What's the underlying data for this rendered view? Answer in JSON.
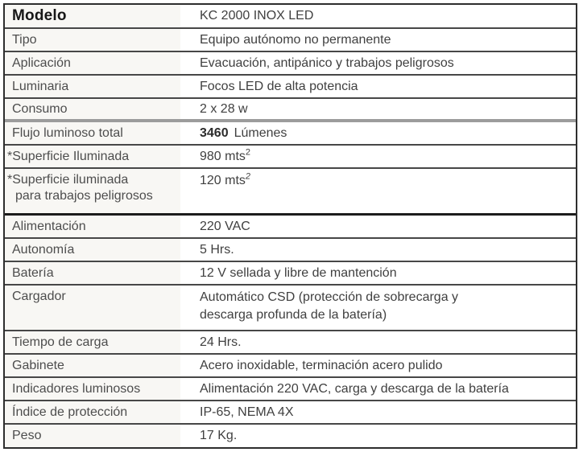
{
  "theme": {
    "outer-border": "#2e2e2e",
    "row-line": "#474747",
    "group-line-gray": "#9c9c9c",
    "group-line-dark": "#1c1c1c",
    "label-bg": "#f8f7f4",
    "label-text": "#4d4d4d",
    "value-text": "#404040",
    "header-text": "#171717"
  },
  "table": {
    "rows": [
      {
        "label": "Modelo",
        "value": "KC 2000 INOX LED"
      },
      {
        "label": "Tipo",
        "value": "Equipo autónomo no permanente"
      },
      {
        "label": "Aplicación",
        "value": "Evacuación, antipánico y trabajos peligrosos"
      },
      {
        "label": "Luminaria",
        "value": "Focos LED de alta potencia"
      },
      {
        "label": "Consumo",
        "value": "2 x 28 w"
      },
      {
        "label": "Flujo luminoso total",
        "value_number": "3460",
        "value_unit": "Lúmenes"
      },
      {
        "label": "*Superficie Iluminada",
        "value": "980 mts",
        "value_sup": "2"
      },
      {
        "label": "*Superficie iluminada",
        "label_line2": "para trabajos peligrosos",
        "value": "120 mts",
        "value_sup": "2"
      },
      {
        "label": "Alimentación",
        "value": "220 VAC"
      },
      {
        "label": "Autonomía",
        "value": "5 Hrs."
      },
      {
        "label": "Batería",
        "value": "12 V sellada y libre de mantención"
      },
      {
        "label": "Cargador",
        "value_line1": "Automático CSD (protección de sobrecarga y",
        "value_line2": "descarga profunda de la batería)"
      },
      {
        "label": "Tiempo de carga",
        "value": "24 Hrs."
      },
      {
        "label": "Gabinete",
        "value": "Acero inoxidable, terminación acero pulido"
      },
      {
        "label": "Indicadores luminosos",
        "value": "Alimentación 220 VAC, carga y descarga de la batería"
      },
      {
        "label": "Índice de protección",
        "value": "IP-65, NEMA 4X"
      },
      {
        "label": "Peso",
        "value": "17 Kg."
      }
    ]
  }
}
